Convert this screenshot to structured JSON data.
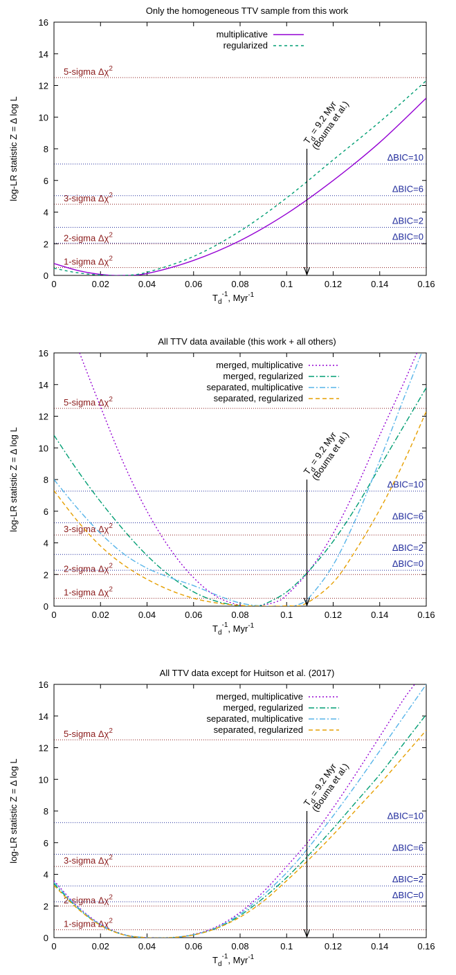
{
  "chart_data": [
    {
      "type": "line",
      "title": "Only the homogeneous TTV sample from this work",
      "xlabel_main": "T",
      "xlabel_sub": "d",
      "xlabel_sup": "-1",
      "xlabel_tail": ", Myr",
      "xlabel_tail_sup": "-1",
      "ylabel": "log-LR statistic Z = Δ log L",
      "xlim": [
        0,
        0.16
      ],
      "ylim": [
        0,
        16
      ],
      "xticks": [
        "0",
        "0.02",
        "0.04",
        "0.06",
        "0.08",
        "0.1",
        "0.12",
        "0.14",
        "0.16"
      ],
      "yticks": [
        "0",
        "2",
        "4",
        "6",
        "8",
        "10",
        "12",
        "14",
        "16"
      ],
      "sigma_levels": [
        {
          "label": "1-sigma Δχ",
          "sup": "2",
          "y": 0.5
        },
        {
          "label": "2-sigma Δχ",
          "sup": "2",
          "y": 2.0
        },
        {
          "label": "3-sigma Δχ",
          "sup": "2",
          "y": 4.5
        },
        {
          "label": "5-sigma Δχ",
          "sup": "2",
          "y": 12.5
        }
      ],
      "bic_levels": [
        {
          "label": "ΔBIC=0",
          "y": 2.04
        },
        {
          "label": "ΔBIC=2",
          "y": 3.04
        },
        {
          "label": "ΔBIC=6",
          "y": 5.04
        },
        {
          "label": "ΔBIC=10",
          "y": 7.04
        }
      ],
      "annotation": {
        "x": 0.1087,
        "y_top": 8.0,
        "line1": "T",
        "line1_sub": "d",
        "line1_rest": " = 9.2 Myr",
        "line2": "(Bouma et al.)"
      },
      "series": [
        {
          "name": "multiplicative",
          "color": "#9400d3",
          "dash": "",
          "x": [
            0,
            0.01,
            0.02,
            0.028,
            0.04,
            0.06,
            0.08,
            0.1,
            0.12,
            0.14,
            0.16
          ],
          "y": [
            0.75,
            0.32,
            0.06,
            0.0,
            0.12,
            0.95,
            2.2,
            3.9,
            6.0,
            8.4,
            11.2
          ]
        },
        {
          "name": "regularized",
          "color": "#009e73",
          "dash": "4,4",
          "x": [
            0,
            0.01,
            0.02,
            0.03,
            0.04,
            0.06,
            0.08,
            0.1,
            0.12,
            0.14,
            0.16
          ],
          "y": [
            0.45,
            0.17,
            0.02,
            0.0,
            0.2,
            1.2,
            2.8,
            4.9,
            7.3,
            9.7,
            12.3
          ]
        }
      ]
    },
    {
      "type": "line",
      "title": "All TTV data available (this work + all others)",
      "xlabel_main": "T",
      "xlabel_sub": "d",
      "xlabel_sup": "-1",
      "xlabel_tail": ", Myr",
      "xlabel_tail_sup": "-1",
      "ylabel": "log-LR statistic Z = Δ log L",
      "xlim": [
        0,
        0.16
      ],
      "ylim": [
        0,
        16
      ],
      "xticks": [
        "0",
        "0.02",
        "0.04",
        "0.06",
        "0.08",
        "0.1",
        "0.12",
        "0.14",
        "0.16"
      ],
      "yticks": [
        "0",
        "2",
        "4",
        "6",
        "8",
        "10",
        "12",
        "14",
        "16"
      ],
      "sigma_levels": [
        {
          "label": "1-sigma Δχ",
          "sup": "2",
          "y": 0.5
        },
        {
          "label": "2-sigma Δχ",
          "sup": "2",
          "y": 2.0
        },
        {
          "label": "3-sigma Δχ",
          "sup": "2",
          "y": 4.5
        },
        {
          "label": "5-sigma Δχ",
          "sup": "2",
          "y": 12.5
        }
      ],
      "bic_levels": [
        {
          "label": "ΔBIC=0",
          "y": 2.27
        },
        {
          "label": "ΔBIC=2",
          "y": 3.27
        },
        {
          "label": "ΔBIC=6",
          "y": 5.27
        },
        {
          "label": "ΔBIC=10",
          "y": 7.27
        }
      ],
      "annotation": {
        "x": 0.1087,
        "y_top": 8.0,
        "line1": "T",
        "line1_sub": "d",
        "line1_rest": " = 9.2 Myr",
        "line2": "(Bouma et al.)"
      },
      "series": [
        {
          "name": "merged, multiplicative",
          "color": "#9400d3",
          "dash": "2,3",
          "x": [
            0.011,
            0.02,
            0.03,
            0.04,
            0.05,
            0.06,
            0.07,
            0.08,
            0.086,
            0.095,
            0.1,
            0.11,
            0.12,
            0.13,
            0.14,
            0.15,
            0.156
          ],
          "y": [
            16.0,
            12.6,
            9.0,
            6.0,
            3.6,
            1.8,
            0.6,
            0.05,
            0.0,
            0.25,
            0.7,
            2.3,
            4.6,
            7.5,
            10.8,
            14.0,
            16.0
          ]
        },
        {
          "name": "merged, regularized",
          "color": "#009e73",
          "dash": "8,3,2,3",
          "x": [
            0,
            0.01,
            0.02,
            0.03,
            0.04,
            0.05,
            0.06,
            0.07,
            0.08,
            0.086,
            0.09,
            0.1,
            0.11,
            0.12,
            0.13,
            0.14,
            0.15,
            0.16
          ],
          "y": [
            10.8,
            8.6,
            6.6,
            4.8,
            3.2,
            1.9,
            0.9,
            0.3,
            0.02,
            0.0,
            0.1,
            0.9,
            2.3,
            4.1,
            6.3,
            8.8,
            11.3,
            13.8
          ]
        },
        {
          "name": "separated, multiplicative",
          "color": "#56b4e9",
          "dash": "8,3,2,3",
          "x": [
            0,
            0.01,
            0.02,
            0.03,
            0.04,
            0.05,
            0.06,
            0.07,
            0.08,
            0.09,
            0.1,
            0.105,
            0.11,
            0.12,
            0.13,
            0.14,
            0.15,
            0.158
          ],
          "y": [
            8.0,
            6.2,
            4.6,
            3.3,
            2.4,
            1.8,
            1.3,
            0.7,
            0.2,
            0.0,
            0.0,
            0.1,
            0.6,
            2.6,
            5.6,
            9.2,
            13.0,
            16.0
          ]
        },
        {
          "name": "separated, regularized",
          "color": "#e69f00",
          "dash": "6,4",
          "x": [
            0,
            0.01,
            0.02,
            0.03,
            0.04,
            0.05,
            0.06,
            0.07,
            0.08,
            0.09,
            0.1,
            0.108,
            0.12,
            0.13,
            0.14,
            0.15,
            0.16
          ],
          "y": [
            7.3,
            5.4,
            3.8,
            2.6,
            1.7,
            1.0,
            0.5,
            0.2,
            0.05,
            0.0,
            0.02,
            0.15,
            1.5,
            3.6,
            6.1,
            9.0,
            12.3
          ]
        }
      ]
    },
    {
      "type": "line",
      "title": "All TTV data except for Huitson et al. (2017)",
      "xlabel_main": "T",
      "xlabel_sub": "d",
      "xlabel_sup": "-1",
      "xlabel_tail": ", Myr",
      "xlabel_tail_sup": "-1",
      "ylabel": "log-LR statistic Z = Δ log L",
      "xlim": [
        0,
        0.16
      ],
      "ylim": [
        0,
        16
      ],
      "xticks": [
        "0",
        "0.02",
        "0.04",
        "0.06",
        "0.08",
        "0.1",
        "0.12",
        "0.14",
        "0.16"
      ],
      "yticks": [
        "0",
        "2",
        "4",
        "6",
        "8",
        "10",
        "12",
        "14",
        "16"
      ],
      "sigma_levels": [
        {
          "label": "1-sigma Δχ",
          "sup": "2",
          "y": 0.5
        },
        {
          "label": "2-sigma Δχ",
          "sup": "2",
          "y": 2.0
        },
        {
          "label": "3-sigma Δχ",
          "sup": "2",
          "y": 4.5
        },
        {
          "label": "5-sigma Δχ",
          "sup": "2",
          "y": 12.5
        }
      ],
      "bic_levels": [
        {
          "label": "ΔBIC=0",
          "y": 2.27
        },
        {
          "label": "ΔBIC=2",
          "y": 3.27
        },
        {
          "label": "ΔBIC=6",
          "y": 5.27
        },
        {
          "label": "ΔBIC=10",
          "y": 7.27
        }
      ],
      "annotation": {
        "x": 0.1087,
        "y_top": 8.0,
        "line1": "T",
        "line1_sub": "d",
        "line1_rest": " = 9.2 Myr",
        "line2": "(Bouma et al.)"
      },
      "series": [
        {
          "name": "merged, multiplicative",
          "color": "#9400d3",
          "dash": "2,3",
          "x": [
            0,
            0.01,
            0.02,
            0.03,
            0.04,
            0.05,
            0.06,
            0.07,
            0.08,
            0.09,
            0.1,
            0.11,
            0.12,
            0.13,
            0.14,
            0.15,
            0.155
          ],
          "y": [
            3.6,
            2.0,
            0.85,
            0.2,
            0.0,
            0.0,
            0.2,
            0.7,
            1.6,
            2.9,
            4.5,
            6.2,
            8.2,
            10.4,
            12.7,
            15.0,
            16.0
          ]
        },
        {
          "name": "merged, regularized",
          "color": "#009e73",
          "dash": "8,3,2,3",
          "x": [
            0,
            0.01,
            0.02,
            0.03,
            0.04,
            0.05,
            0.06,
            0.07,
            0.08,
            0.09,
            0.1,
            0.11,
            0.12,
            0.13,
            0.14,
            0.15,
            0.16
          ],
          "y": [
            3.4,
            1.9,
            0.8,
            0.18,
            0.0,
            0.0,
            0.18,
            0.6,
            1.4,
            2.5,
            3.8,
            5.3,
            6.9,
            8.6,
            10.3,
            12.2,
            14.1
          ]
        },
        {
          "name": "separated, multiplicative",
          "color": "#56b4e9",
          "dash": "8,3,2,3",
          "x": [
            0,
            0.01,
            0.02,
            0.03,
            0.04,
            0.05,
            0.06,
            0.07,
            0.08,
            0.09,
            0.1,
            0.11,
            0.12,
            0.13,
            0.14,
            0.15,
            0.16
          ],
          "y": [
            3.5,
            1.95,
            0.82,
            0.19,
            0.0,
            0.0,
            0.19,
            0.65,
            1.5,
            2.7,
            4.1,
            5.8,
            7.7,
            9.7,
            11.8,
            13.9,
            16.0
          ]
        },
        {
          "name": "separated, regularized",
          "color": "#e69f00",
          "dash": "6,4",
          "x": [
            0,
            0.01,
            0.02,
            0.03,
            0.04,
            0.05,
            0.06,
            0.07,
            0.08,
            0.09,
            0.1,
            0.11,
            0.12,
            0.13,
            0.14,
            0.15,
            0.16
          ],
          "y": [
            3.3,
            1.85,
            0.78,
            0.17,
            0.0,
            0.0,
            0.17,
            0.6,
            1.3,
            2.3,
            3.6,
            5.0,
            6.5,
            8.1,
            9.7,
            11.4,
            13.1
          ]
        }
      ]
    }
  ]
}
